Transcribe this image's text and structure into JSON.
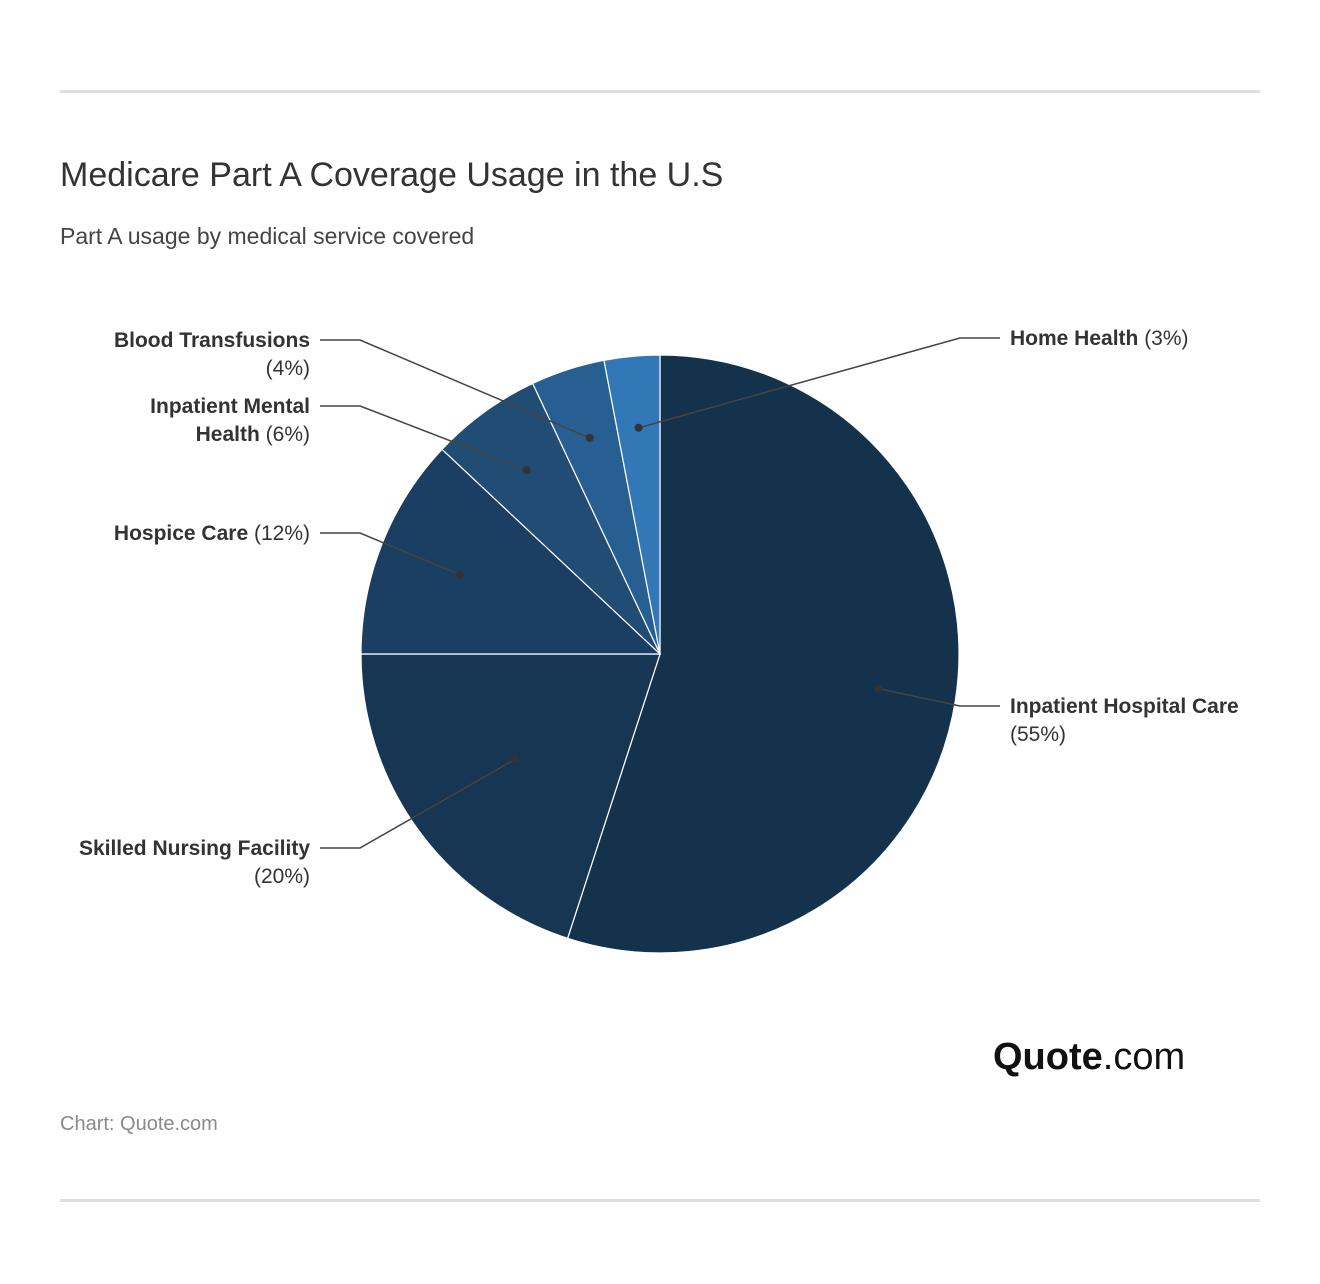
{
  "header": {
    "title": "Medicare Part A Coverage Usage in the U.S",
    "subtitle": "Part A usage by medical service covered"
  },
  "footer": {
    "source": "Chart: Quote.com",
    "logo_brand": "Quote",
    "logo_suffix": ".com"
  },
  "chart_data": {
    "type": "pie",
    "title": "Medicare Part A Coverage Usage in the U.S",
    "subtitle": "Part A usage by medical service covered",
    "start": "12 o'clock",
    "direction": "clockwise",
    "slices": [
      {
        "label": "Inpatient Hospital Care",
        "value": 55,
        "value_label": "(55%)",
        "color": "#15324c"
      },
      {
        "label": "Skilled Nursing Facility",
        "value": 20,
        "value_label": "(20%)",
        "color": "#173654"
      },
      {
        "label": "Hospice Care",
        "value": 12,
        "value_label": "(12%)",
        "color": "#1b3f62"
      },
      {
        "label": "Inpatient Mental Health",
        "value": 6,
        "value_label": "(6%)",
        "color": "#214c74"
      },
      {
        "label": "Blood Transfusions",
        "value": 4,
        "value_label": "(4%)",
        "color": "#285f93"
      },
      {
        "label": "Home Health",
        "value": 3,
        "value_label": "(3%)",
        "color": "#3277b6"
      }
    ]
  }
}
